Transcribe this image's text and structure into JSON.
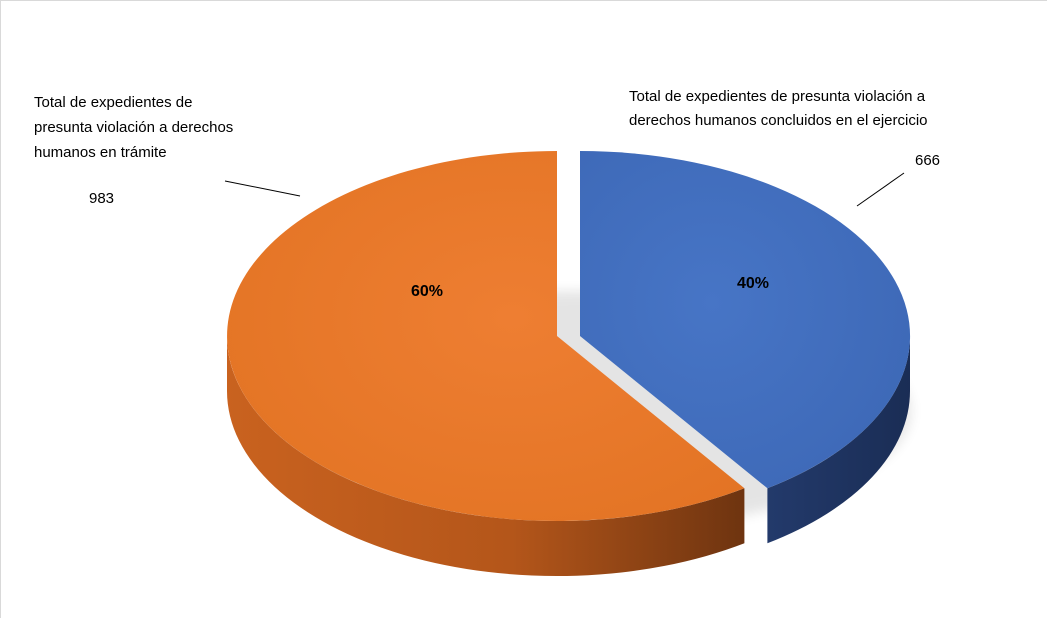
{
  "chart_data": {
    "type": "pie",
    "style": "3d-exploded",
    "slices": [
      {
        "label_lines": [
          "Total de expedientes de presunta violación a",
          "derechos humanos concluidos en el ejercicio"
        ],
        "value": 666,
        "percent_label": "40%",
        "color": "#4472C4"
      },
      {
        "label_lines": [
          "Total de expedientes de",
          "presunta violación a derechos",
          "humanos en trámite"
        ],
        "value": 983,
        "percent_label": "60%",
        "color": "#ED7D31"
      }
    ],
    "legend": "none",
    "data_labels": "outside with leader lines"
  }
}
